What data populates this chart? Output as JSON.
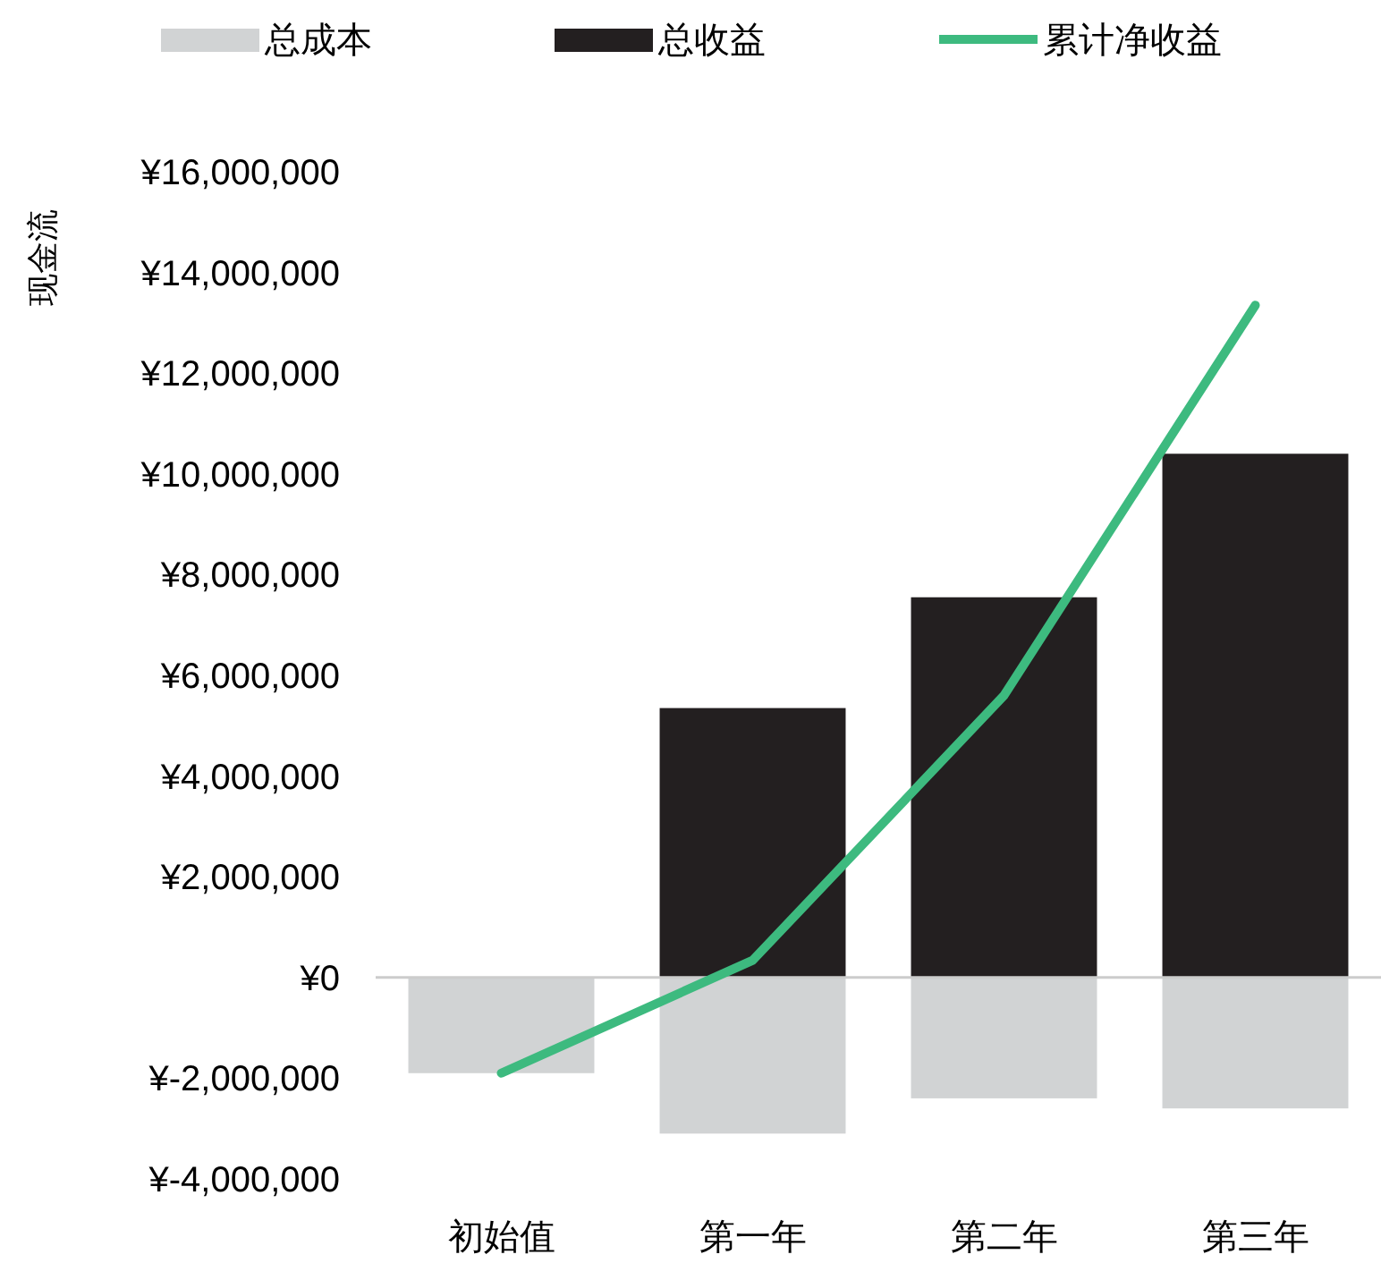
{
  "chart_data": {
    "type": "bar",
    "ylabel": "现金流",
    "categories": [
      "初始值",
      "第一年",
      "第二年",
      "第三年"
    ],
    "stacked": true,
    "legend": "top",
    "ylim": [
      -4000000,
      16000000
    ],
    "yticks": [
      {
        "value": -4000000,
        "label": "¥-4,000,000"
      },
      {
        "value": -2000000,
        "label": "¥-2,000,000"
      },
      {
        "value": 0,
        "label": "¥0"
      },
      {
        "value": 2000000,
        "label": "¥2,000,000"
      },
      {
        "value": 4000000,
        "label": "¥4,000,000"
      },
      {
        "value": 6000000,
        "label": "¥6,000,000"
      },
      {
        "value": 8000000,
        "label": "¥8,000,000"
      },
      {
        "value": 10000000,
        "label": "¥10,000,000"
      },
      {
        "value": 12000000,
        "label": "¥12,000,000"
      },
      {
        "value": 14000000,
        "label": "¥14,000,000"
      },
      {
        "value": 16000000,
        "label": "¥16,000,000"
      }
    ],
    "series": [
      {
        "name": "总成本",
        "color": "#d1d3d4",
        "values": [
          -1900000,
          -3100000,
          -2400000,
          -2600000
        ]
      },
      {
        "name": "总收益",
        "color": "#231f20",
        "values": [
          null,
          5350000,
          7550000,
          10400000
        ]
      },
      {
        "name": "累计净收益",
        "type": "line",
        "color": "#3dba7f",
        "values": [
          -1900000,
          340000,
          5600000,
          13350000
        ]
      }
    ]
  }
}
